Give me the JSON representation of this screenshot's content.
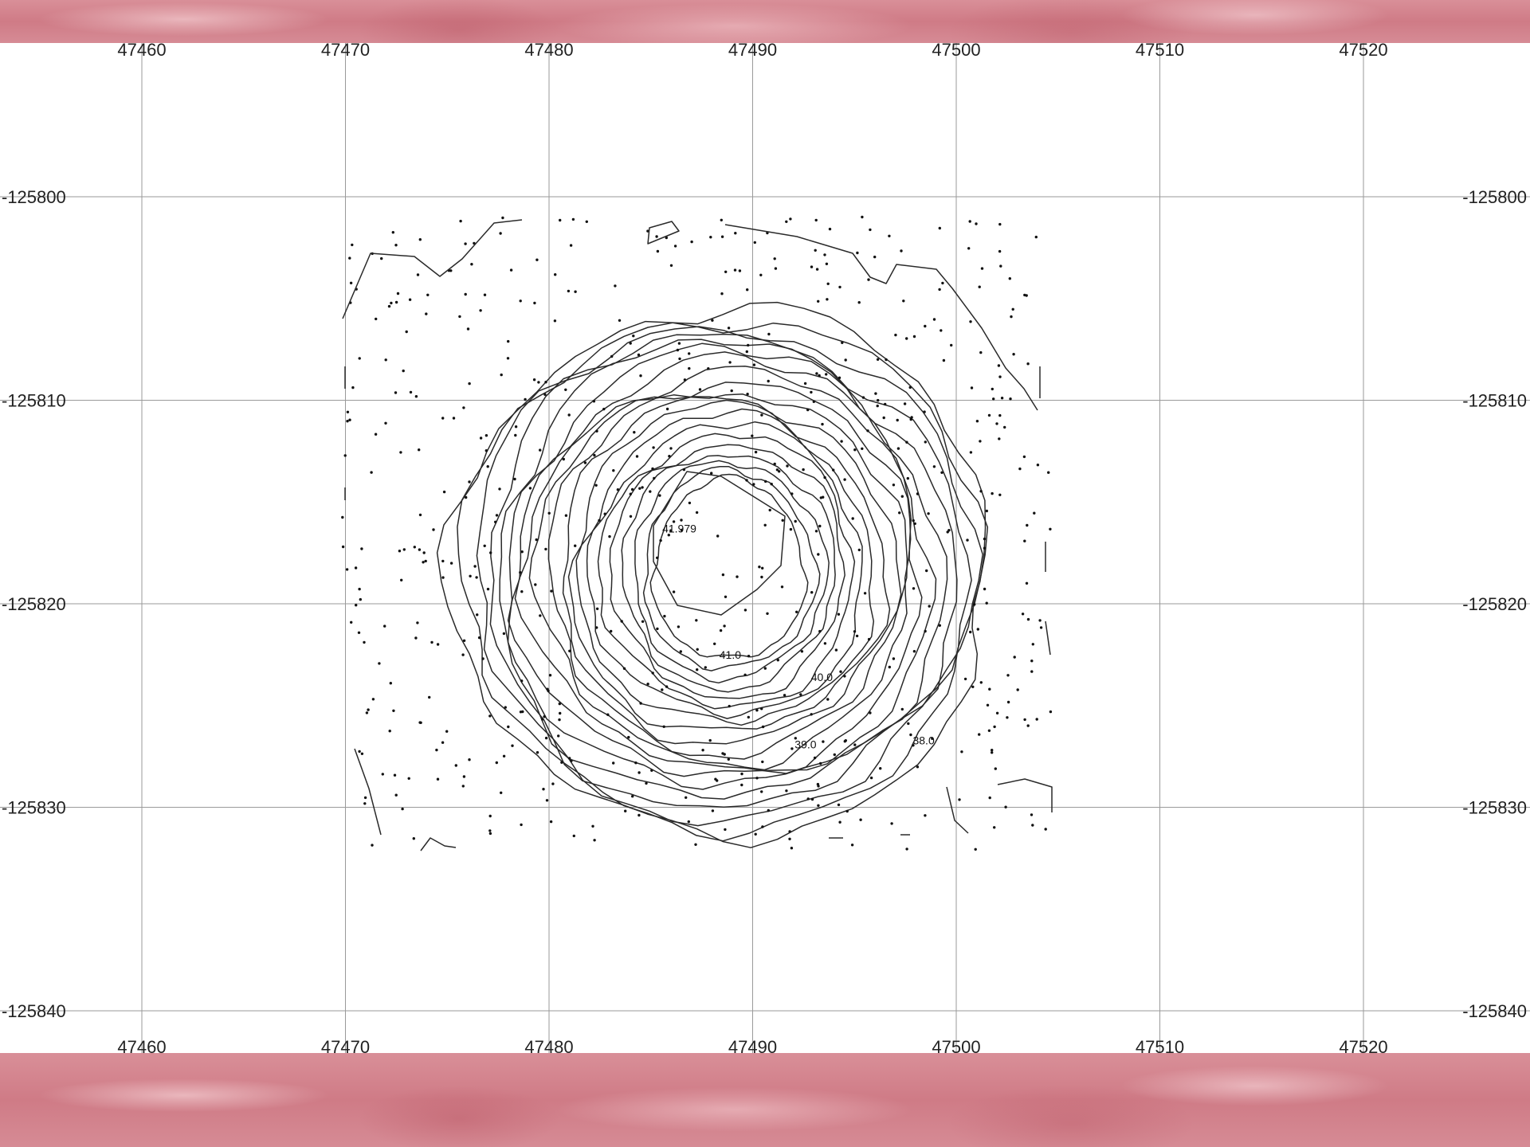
{
  "colors": {
    "frame": "#cf7b86",
    "grid": "#9a9a9a",
    "contour": "#2a2a2a",
    "background": "#ffffff"
  },
  "axes": {
    "x_ticks": [
      "47460",
      "47470",
      "47480",
      "47490",
      "47500",
      "47510",
      "47520"
    ],
    "y_ticks": [
      "-125800",
      "-125810",
      "-125820",
      "-125830",
      "-125840"
    ],
    "x_range": [
      47453,
      47528
    ],
    "y_range": [
      -125842,
      -125792.5
    ]
  },
  "peak": {
    "label": "41.979",
    "x": 47486.4,
    "y": -125816.5
  },
  "contour_labels": [
    {
      "text": "41.0",
      "x": 47488.9,
      "y": -125822.7
    },
    {
      "text": "40.0",
      "x": 47493.4,
      "y": -125823.8
    },
    {
      "text": "39.0",
      "x": 47492.6,
      "y": -125827.1
    },
    {
      "text": "38.0",
      "x": 47498.4,
      "y": -125826.9
    }
  ],
  "contour_levels": [
    41.0,
    40.0,
    39.0,
    38.0
  ]
}
